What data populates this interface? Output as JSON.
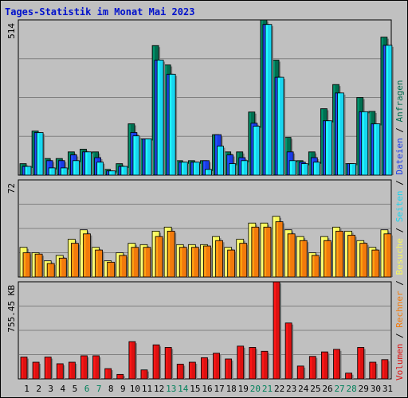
{
  "title": "Tages-Statistik im Monat Mai 2023",
  "colors": {
    "anfragen": "#006e50",
    "dateien": "#1a3be6",
    "seiten": "#18d6f0",
    "besuche": "#f8f85a",
    "rechner": "#f27a0c",
    "volumen": "#dd1111",
    "weekend_label": "#00805a",
    "label_neutral": "#000000"
  },
  "chart_data": [
    {
      "type": "bar",
      "panel": "top",
      "categories": [
        "1",
        "2",
        "3",
        "4",
        "5",
        "6",
        "7",
        "8",
        "9",
        "10",
        "11",
        "12",
        "13",
        "14",
        "15",
        "16",
        "17",
        "18",
        "19",
        "20",
        "21",
        "22",
        "23",
        "24",
        "25",
        "26",
        "27",
        "28",
        "29",
        "30",
        "31"
      ],
      "weekend_days": [
        "6",
        "7",
        "13",
        "14",
        "20",
        "21",
        "27",
        "28"
      ],
      "ylim": [
        0,
        514
      ],
      "y_tick_label": "514",
      "series": [
        {
          "name": "Anfragen",
          "color": "#006e50",
          "values": [
            38,
            146,
            55,
            55,
            77,
            86,
            77,
            19,
            38,
            170,
            120,
            429,
            365,
            48,
            48,
            48,
            134,
            77,
            77,
            209,
            514,
            381,
            125,
            48,
            77,
            220,
            300,
            38,
            257,
            211,
            457
          ]
        },
        {
          "name": "Dateien",
          "color": "#1a3be6",
          "values": [
            29,
            141,
            48,
            48,
            67,
            77,
            58,
            14,
            29,
            141,
            120,
            381,
            334,
            43,
            43,
            48,
            134,
            67,
            58,
            172,
            499,
            324,
            77,
            43,
            58,
            180,
            272,
            38,
            210,
            170,
            430
          ]
        },
        {
          "name": "Seiten",
          "color": "#18d6f0",
          "values": [
            29,
            141,
            24,
            24,
            48,
            77,
            43,
            14,
            29,
            130,
            120,
            381,
            334,
            43,
            43,
            19,
            96,
            38,
            48,
            162,
            499,
            324,
            48,
            38,
            43,
            180,
            272,
            38,
            210,
            170,
            430
          ]
        }
      ],
      "right_labels": [
        "Anfragen",
        "Dateien",
        "Seiten"
      ]
    },
    {
      "type": "bar",
      "panel": "middle",
      "categories": [
        "1",
        "2",
        "3",
        "4",
        "5",
        "6",
        "7",
        "8",
        "9",
        "10",
        "11",
        "12",
        "13",
        "14",
        "15",
        "16",
        "17",
        "18",
        "19",
        "20",
        "21",
        "22",
        "23",
        "24",
        "25",
        "26",
        "27",
        "28",
        "29",
        "30",
        "31"
      ],
      "ylim": [
        0,
        72
      ],
      "y_tick_label": "72",
      "series": [
        {
          "name": "Besuche",
          "color": "#f8f85a",
          "values": [
            22,
            18,
            12,
            16,
            28,
            35,
            22,
            12,
            18,
            25,
            24,
            34,
            37,
            24,
            24,
            24,
            30,
            22,
            28,
            40,
            40,
            45,
            35,
            30,
            18,
            30,
            37,
            34,
            27,
            22,
            35
          ]
        },
        {
          "name": "Rechner",
          "color": "#f27a0c",
          "values": [
            18,
            17,
            10,
            14,
            25,
            32,
            20,
            11,
            16,
            22,
            22,
            30,
            34,
            22,
            22,
            23,
            27,
            20,
            25,
            37,
            37,
            41,
            32,
            27,
            16,
            27,
            34,
            31,
            25,
            20,
            32
          ]
        }
      ],
      "right_labels": [
        "Besuche",
        "Rechner"
      ]
    },
    {
      "type": "bar",
      "panel": "bottom",
      "categories": [
        "1",
        "2",
        "3",
        "4",
        "5",
        "6",
        "7",
        "8",
        "9",
        "10",
        "11",
        "12",
        "13",
        "14",
        "15",
        "16",
        "17",
        "18",
        "19",
        "20",
        "21",
        "22",
        "23",
        "24",
        "25",
        "26",
        "27",
        "28",
        "29",
        "30",
        "31"
      ],
      "ylim": [
        0,
        755.45
      ],
      "y_tick_label": "755.45 KB",
      "series": [
        {
          "name": "Volumen",
          "color": "#dd1111",
          "values": [
            170,
            130,
            170,
            118,
            130,
            180,
            180,
            80,
            35,
            290,
            70,
            265,
            245,
            115,
            130,
            165,
            200,
            155,
            255,
            245,
            215,
            755,
            435,
            100,
            175,
            210,
            230,
            45,
            245,
            130,
            150
          ]
        }
      ],
      "right_labels": [
        "Volumen"
      ]
    }
  ]
}
